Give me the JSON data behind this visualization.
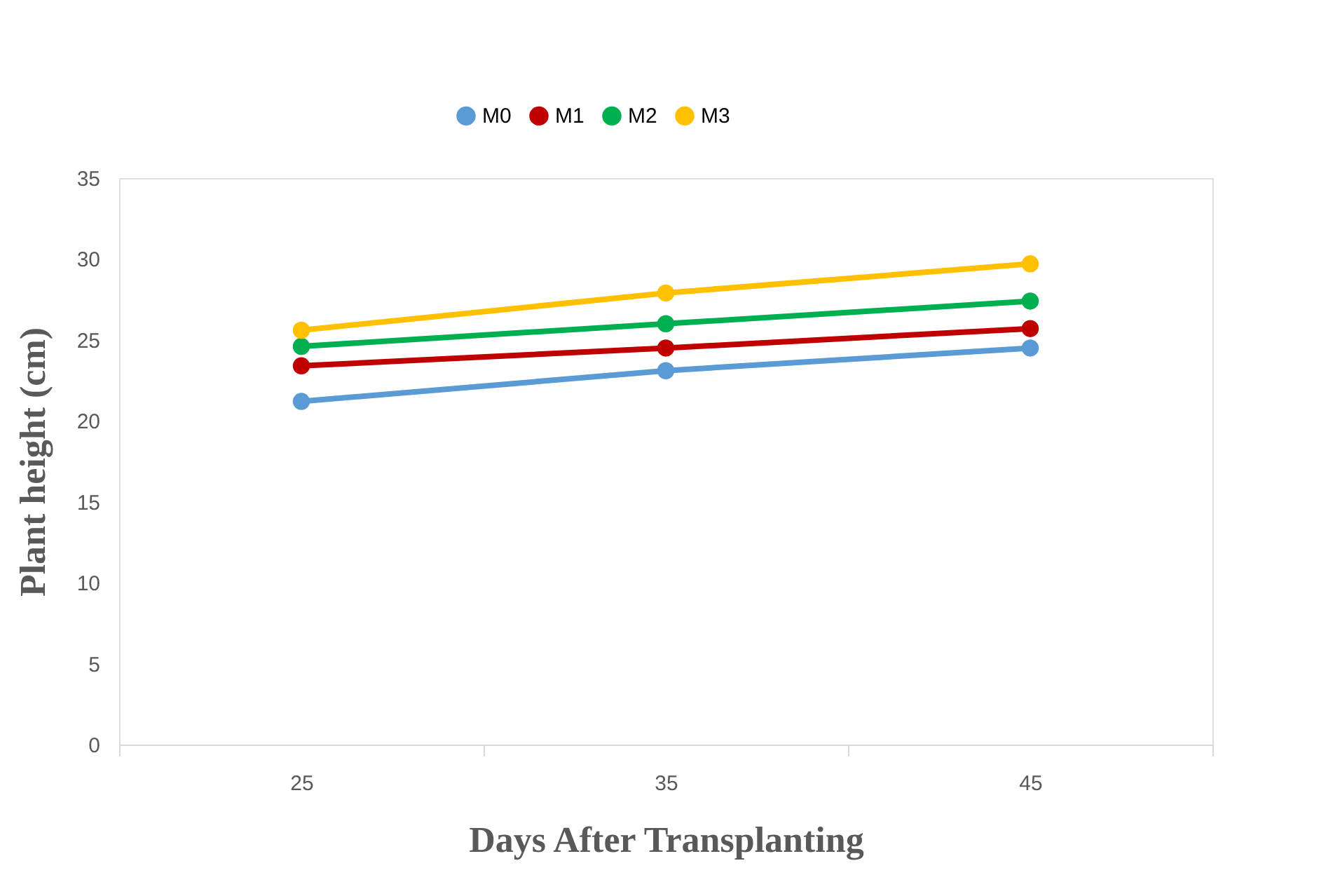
{
  "chart_data": {
    "type": "line",
    "xlabel": "Days After Transplanting",
    "ylabel": "Plant height (cm)",
    "categories": [
      "25",
      "35",
      "45"
    ],
    "series": [
      {
        "name": "M0",
        "color": "#5b9bd5",
        "values": [
          21.2,
          23.1,
          24.5
        ]
      },
      {
        "name": "M1",
        "color": "#c00000",
        "values": [
          23.4,
          24.5,
          25.7
        ]
      },
      {
        "name": "M2",
        "color": "#00b050",
        "values": [
          24.6,
          26.0,
          27.4
        ]
      },
      {
        "name": "M3",
        "color": "#ffc000",
        "values": [
          25.6,
          27.9,
          29.7
        ]
      }
    ],
    "ylim": [
      0,
      35
    ],
    "yticks": [
      0,
      5,
      10,
      15,
      20,
      25,
      30,
      35
    ],
    "grid": false,
    "legend": "top",
    "marker": "circle",
    "line_style": "solid"
  }
}
